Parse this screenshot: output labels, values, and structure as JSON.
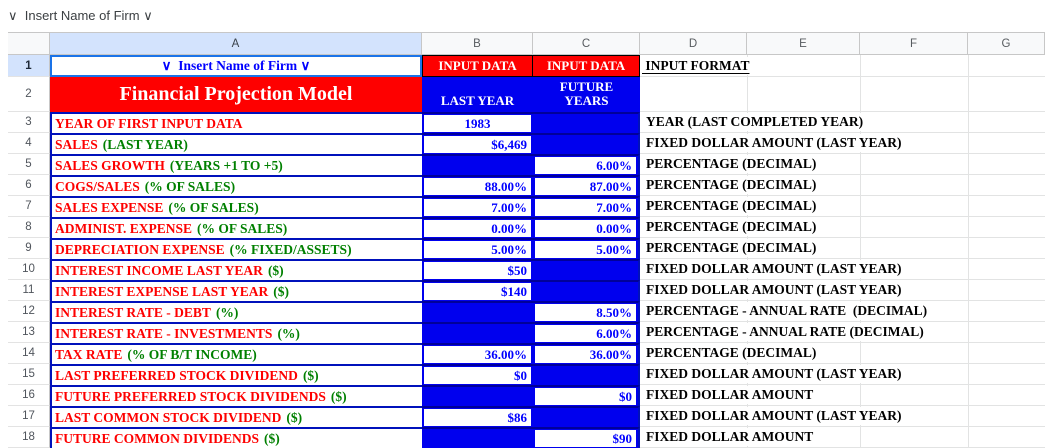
{
  "formula_bar": {
    "text": "∨  Insert Name of Firm ∨"
  },
  "column_headers": [
    "A",
    "B",
    "C",
    "D",
    "E",
    "F",
    "G"
  ],
  "header": {
    "r1": "1",
    "r2": "2",
    "a1": "∨  Insert Name of Firm ∨",
    "b1": "INPUT DATA",
    "c1": "INPUT DATA",
    "d1": " INPUT FORMAT",
    "title": "Financial Projection Model",
    "b2": "LAST YEAR",
    "c2_line1": "FUTURE",
    "c2_line2": "YEARS"
  },
  "rows": [
    {
      "num": "3",
      "label": "YEAR OF FIRST INPUT DATA",
      "label2": "",
      "b": "1983",
      "c": "",
      "format": "YEAR (LAST COMPLETED YEAR)"
    },
    {
      "num": "4",
      "label": "SALES",
      "label2": "(LAST YEAR)",
      "b": "$6,469",
      "c": "",
      "format": "FIXED DOLLAR AMOUNT (LAST YEAR)"
    },
    {
      "num": "5",
      "label": "SALES GROWTH",
      "label2": "(YEARS +1 TO +5)",
      "b": "",
      "c": "6.00%",
      "format": "PERCENTAGE (DECIMAL)"
    },
    {
      "num": "6",
      "label": "COGS/SALES",
      "label2": "(% OF SALES)",
      "b": "88.00%",
      "c": "87.00%",
      "format": "PERCENTAGE (DECIMAL)"
    },
    {
      "num": "7",
      "label": "SALES EXPENSE",
      "label2": "(% OF SALES)",
      "b": "7.00%",
      "c": "7.00%",
      "format": "PERCENTAGE (DECIMAL)"
    },
    {
      "num": "8",
      "label": "ADMINIST. EXPENSE",
      "label2": "(% OF SALES)",
      "b": "0.00%",
      "c": "0.00%",
      "format": "PERCENTAGE (DECIMAL)"
    },
    {
      "num": "9",
      "label": "DEPRECIATION EXPENSE",
      "label2": "(% FIXED/ASSETS)",
      "b": "5.00%",
      "c": "5.00%",
      "format": "PERCENTAGE (DECIMAL)"
    },
    {
      "num": "10",
      "label": "INTEREST INCOME LAST YEAR",
      "label2": "($)",
      "b": "$50",
      "c": "",
      "format": "FIXED DOLLAR AMOUNT (LAST YEAR)"
    },
    {
      "num": "11",
      "label": "INTEREST EXPENSE LAST YEAR",
      "label2": "($)",
      "b": "$140",
      "c": "",
      "format": "FIXED DOLLAR AMOUNT (LAST YEAR)"
    },
    {
      "num": "12",
      "label": "INTEREST RATE - DEBT",
      "label2": "(%)",
      "b": "",
      "c": "8.50%",
      "format": "PERCENTAGE - ANNUAL RATE  (DECIMAL)"
    },
    {
      "num": "13",
      "label": "INTEREST RATE - INVESTMENTS",
      "label2": "(%)",
      "b": "",
      "c": "6.00%",
      "format": "PERCENTAGE - ANNUAL RATE (DECIMAL)"
    },
    {
      "num": "14",
      "label": "TAX RATE",
      "label2": "(% OF B/T INCOME)",
      "b": "36.00%",
      "c": "36.00%",
      "format": "PERCENTAGE (DECIMAL)"
    },
    {
      "num": "15",
      "label": "LAST PREFERRED STOCK DIVIDEND",
      "label2": "($)",
      "b": "$0",
      "c": "",
      "format": "FIXED DOLLAR AMOUNT (LAST YEAR)"
    },
    {
      "num": "16",
      "label": "FUTURE PREFERRED STOCK DIVIDENDS",
      "label2": "($)",
      "b": "",
      "c": "$0",
      "format": "FIXED DOLLAR AMOUNT"
    },
    {
      "num": "17",
      "label": "LAST COMMON STOCK DIVIDEND",
      "label2": "($)",
      "b": "$86",
      "c": "",
      "format": "FIXED DOLLAR AMOUNT (LAST YEAR)"
    },
    {
      "num": "18",
      "label": "FUTURE COMMON DIVIDENDS",
      "label2": "($)",
      "b": "",
      "c": "$90",
      "format": "FIXED DOLLAR AMOUNT"
    }
  ],
  "colors": {
    "input_fill_blue": "#0000ee",
    "input_text_blue": "#0000ff",
    "label_red": "#fe0000",
    "label_green": "#008000",
    "banner_red": "#fe0000",
    "selection_blue": "#1a73e8",
    "header_selected_bg": "#d3e3fd"
  }
}
